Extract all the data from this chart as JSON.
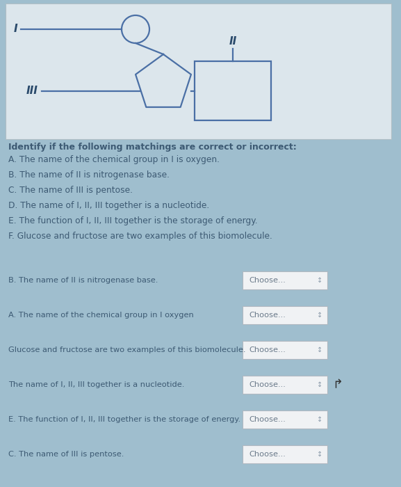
{
  "background_color": "#9fbece",
  "diagram_bg": "#e2e8ec",
  "title_section": "Identify if the following matchings are correct or incorrect:",
  "items_list": [
    "A. The name of the chemical group in I is oxygen.",
    "B. The name of II is nitrogenase base.",
    "C. The name of III is pentose.",
    "D. The name of I, II, III together is a nucleotide.",
    "E. The function of I, II, III together is the storage of energy.",
    "F. Glucose and fructose are two examples of this biomolecule."
  ],
  "quiz_rows": [
    "B. The name of II is nitrogenase base.",
    "A. The name of the chemical group in I oxygen",
    "Glucose and fructose are two examples of this biomolecule.",
    "The name of I, II, III together is a nucleotide.",
    "E. The function of I, II, III together is the storage of energy.",
    "C. The name of III is pentose."
  ],
  "choose_text": "Choose...",
  "text_color": "#3d5a73",
  "line_color": "#4a6fa5",
  "diagram_label_color": "#2a4a6b"
}
